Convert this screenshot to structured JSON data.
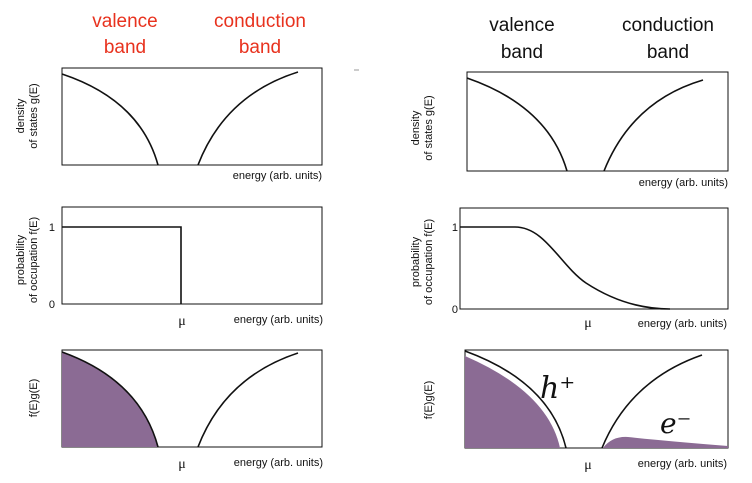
{
  "colors": {
    "header_left": "#e8321e",
    "header_right": "#111111",
    "fill": "#8b6b94",
    "line": "#111111"
  },
  "left": {
    "valence_line1": "valence",
    "valence_line2": "band",
    "conduction_line1": "conduction",
    "conduction_line2": "band"
  },
  "right": {
    "valence_line1": "valence",
    "valence_line2": "band",
    "conduction_line1": "conduction",
    "conduction_line2": "band"
  },
  "dos_ylabel_line1": "density",
  "dos_ylabel_line2": "of states g(E)",
  "occ_ylabel_line1": "probability",
  "occ_ylabel_line2": "of occupation f(E)",
  "prod_ylabel": "f(E)g(E)",
  "xlabel": "energy (arb. units)",
  "tick_one": "1",
  "tick_zero": "0",
  "mu": "μ",
  "hole_label": "h⁺",
  "electron_label": "e⁻"
}
